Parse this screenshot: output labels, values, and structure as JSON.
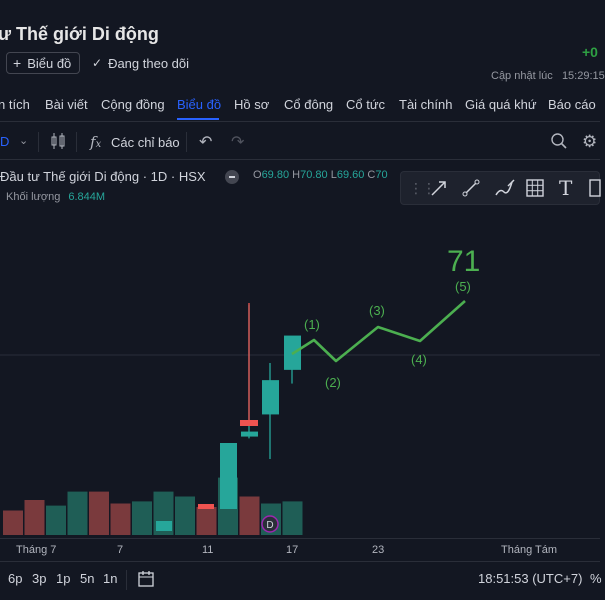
{
  "header": {
    "title": "ư Thế giới Di động",
    "right_change": "+0",
    "chart_button": "Biểu đồ",
    "follow_button": "Đang theo dõi",
    "updated_label": "Cập nhật lúc",
    "updated_time": "15:29:15"
  },
  "tabs": [
    "n tích",
    "Bài viết",
    "Cộng đồng",
    "Biểu đồ",
    "Hồ sơ",
    "Cổ đông",
    "Cổ tức",
    "Tài chính",
    "Giá quá khứ",
    "Báo cáo"
  ],
  "active_tab": "Biểu đồ",
  "toolbar": {
    "interval": "D",
    "indicators_label": "Các chỉ báo",
    "icons": [
      "chevron-down-icon",
      "candles-icon",
      "fx-icon",
      "undo-icon",
      "redo-icon",
      "zoom-icon",
      "gear-icon"
    ]
  },
  "legend": {
    "symbol": "Đầu tư Thế giới Di động · 1D · HSX",
    "open_label": "O",
    "open": "69.80",
    "high_label": "H",
    "high": "70.80",
    "low_label": "L",
    "low": "69.60",
    "close_label": "C",
    "close": "70",
    "volume_label": "Khối lượng",
    "volume": "6.844M"
  },
  "drawing_tools": [
    "arrow-tool-icon",
    "line-tool-icon",
    "brush-tool-icon",
    "grid-tool-icon",
    "text-tool-icon",
    "measure-tool-icon"
  ],
  "chart_data": {
    "type": "candlestick",
    "candles": [
      {
        "o": 69.5,
        "h": 69.5,
        "l": 69.3,
        "c": 69.5
      },
      {
        "o": 69.7,
        "h": 70.8,
        "l": 69.2,
        "c": 70.5
      },
      {
        "o": 70.2,
        "h": 71.3,
        "l": 69.9,
        "c": 71.1
      },
      {
        "o": 71.2,
        "h": 72.0,
        "l": 71.1,
        "c": 71.9
      }
    ],
    "volume_bars": [
      {
        "dir": "down"
      },
      {
        "dir": "down"
      },
      {
        "dir": "up"
      },
      {
        "dir": "up"
      },
      {
        "dir": "down"
      },
      {
        "dir": "down"
      },
      {
        "dir": "up"
      },
      {
        "dir": "up"
      },
      {
        "dir": "up"
      },
      {
        "dir": "down"
      },
      {
        "dir": "up"
      },
      {
        "dir": "down"
      },
      {
        "dir": "up"
      },
      {
        "dir": "up"
      }
    ],
    "volume_levels": [
      0.35,
      0.5,
      0.42,
      0.62,
      0.62,
      0.45,
      0.48,
      0.62,
      0.55,
      0.4,
      0.82,
      0.55,
      0.45,
      0.48
    ],
    "wave_projection": {
      "labels": [
        "(1)",
        "(2)",
        "(3)",
        "(4)",
        "(5)"
      ],
      "target_label": "71"
    },
    "event_marker": "D",
    "x_ticks": [
      "Tháng 7",
      "7",
      "11",
      "17",
      "23",
      "Tháng Tám"
    ]
  },
  "bottom_bar": {
    "ranges": [
      "6p",
      "3p",
      "1p",
      "5n",
      "1n"
    ],
    "clock": "18:51:53 (UTC+7)",
    "percent": "%"
  },
  "colors": {
    "up": "#26a69a",
    "down": "#ef5350",
    "wave": "#4caf50",
    "accent": "#2962ff"
  }
}
